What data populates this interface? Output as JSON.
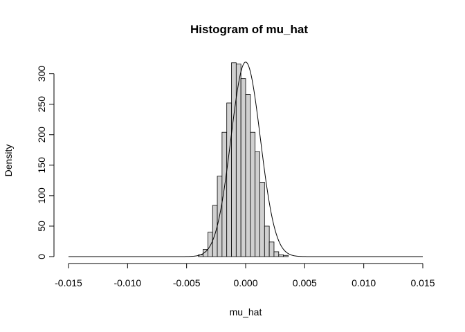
{
  "chart_data": {
    "type": "bar",
    "title": "Histogram of mu_hat",
    "xlabel": "mu_hat",
    "ylabel": "Density",
    "xlim": [
      -0.015,
      0.015
    ],
    "ylim": [
      0,
      320
    ],
    "x_ticks": [
      -0.015,
      -0.01,
      -0.005,
      0.0,
      0.005,
      0.01,
      0.015
    ],
    "x_tick_labels": [
      "-0.015",
      "-0.010",
      "-0.005",
      "0.000",
      "0.005",
      "0.010",
      "0.015"
    ],
    "y_ticks": [
      0,
      50,
      100,
      150,
      200,
      250,
      300
    ],
    "y_tick_labels": [
      "0",
      "50",
      "100",
      "150",
      "200",
      "250",
      "300"
    ],
    "bin_width": 0.0004,
    "bin_starts": [
      -0.004,
      -0.0036,
      -0.0032,
      -0.0028,
      -0.0024,
      -0.002,
      -0.0016,
      -0.0012,
      -0.0008,
      -0.0004,
      0.0,
      0.0004,
      0.0008,
      0.0012,
      0.0016,
      0.002,
      0.0024,
      0.0028,
      0.0032,
      0.0036
    ],
    "values": [
      3,
      12,
      40,
      84,
      132,
      204,
      252,
      318,
      316,
      292,
      266,
      204,
      172,
      122,
      50,
      24,
      8,
      3,
      2,
      0
    ],
    "density_curve": {
      "type": "normal",
      "mean": 0.0,
      "sd": 0.00125
    },
    "bar_color": "#d0d0d0",
    "grid": false
  }
}
